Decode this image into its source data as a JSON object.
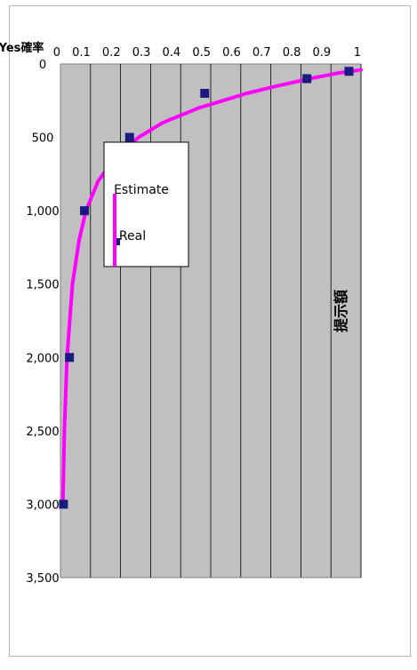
{
  "chart_data": {
    "type": "scatter",
    "orientation": "rotated-90-clockwise",
    "xlabel": "提示額",
    "ylabel": "Yes確率",
    "xlim": [
      0,
      3500
    ],
    "ylim": [
      0,
      1
    ],
    "x_ticks": [
      "0",
      "500",
      "1,000",
      "1,500",
      "2,000",
      "2,500",
      "3,000",
      "3,500"
    ],
    "y_ticks": [
      "0",
      "0.1",
      "0.2",
      "0.3",
      "0.4",
      "0.5",
      "0.6",
      "0.7",
      "0.8",
      "0.9",
      "1"
    ],
    "grid": true,
    "legend_position": "upper-left",
    "series": [
      {
        "name": "Real",
        "kind": "scatter",
        "marker": "square",
        "color": "#1a1a80",
        "points": [
          {
            "x": 50,
            "y": 0.96
          },
          {
            "x": 100,
            "y": 0.82
          },
          {
            "x": 200,
            "y": 0.48
          },
          {
            "x": 500,
            "y": 0.23
          },
          {
            "x": 1000,
            "y": 0.08
          },
          {
            "x": 2000,
            "y": 0.03
          },
          {
            "x": 3000,
            "y": 0.01
          }
        ]
      },
      {
        "name": "Estimate",
        "kind": "line",
        "color": "#ff00ff",
        "points": [
          {
            "x": 40,
            "y": 1.0
          },
          {
            "x": 60,
            "y": 0.93
          },
          {
            "x": 80,
            "y": 0.88
          },
          {
            "x": 100,
            "y": 0.83
          },
          {
            "x": 150,
            "y": 0.72
          },
          {
            "x": 200,
            "y": 0.62
          },
          {
            "x": 250,
            "y": 0.54
          },
          {
            "x": 300,
            "y": 0.46
          },
          {
            "x": 400,
            "y": 0.34
          },
          {
            "x": 500,
            "y": 0.26
          },
          {
            "x": 600,
            "y": 0.2
          },
          {
            "x": 700,
            "y": 0.16
          },
          {
            "x": 800,
            "y": 0.125
          },
          {
            "x": 1000,
            "y": 0.085
          },
          {
            "x": 1200,
            "y": 0.062
          },
          {
            "x": 1500,
            "y": 0.04
          },
          {
            "x": 2000,
            "y": 0.022
          },
          {
            "x": 2500,
            "y": 0.013
          },
          {
            "x": 3000,
            "y": 0.008
          }
        ]
      }
    ]
  },
  "colors": {
    "plot_background": "#c0c0c0",
    "gridline": "#000000",
    "real_marker": "#1a1a80",
    "estimate_line": "#ff00ff",
    "frame_border": "#b8b8b8"
  }
}
